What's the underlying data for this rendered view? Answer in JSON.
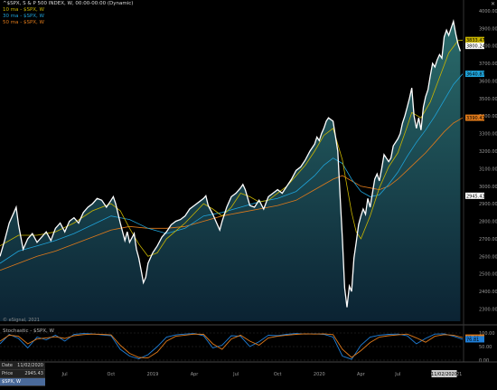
{
  "legend": {
    "title": "^$SPX, S & P 500 INDEX, W, 00:00-00:00 (Dynamic)",
    "ma10": "10 ma - $SPX, W",
    "ma30": "30 ma - $SPX, W",
    "ma50": "50 ma - $SPX, W"
  },
  "colors": {
    "price": "#ffffff",
    "ma10": "#c8b400",
    "ma30": "#1fa3d9",
    "ma50": "#e07a1a",
    "fill_top": "#2a6b6b",
    "fill_bottom": "#0b2333",
    "stoch_k": "#e07a1a",
    "stoch_d": "#1f7fd9"
  },
  "copyright": "© eSignal, 2021",
  "stoch_title": "Stochastic - $SPX, W",
  "info": {
    "date_label": "Date",
    "date_value": "11/02/2020",
    "price_label": "Price",
    "price_value": "2945.43",
    "symbol": "$SPX, W"
  },
  "close_glyph": "✕",
  "chart_data": {
    "type": "line",
    "ylim": [
      2230,
      4010
    ],
    "yticks": [
      2300,
      2400,
      2500,
      2600,
      2700,
      2800,
      2900,
      3000,
      3100,
      3200,
      3300,
      3400,
      3500,
      3600,
      3700,
      3800,
      3900,
      4000
    ],
    "xticks": [
      {
        "label": "Jul",
        "x": 0.14
      },
      {
        "label": "Oct",
        "x": 0.24
      },
      {
        "label": "2019",
        "x": 0.33
      },
      {
        "label": "Apr",
        "x": 0.42
      },
      {
        "label": "Jul",
        "x": 0.51
      },
      {
        "label": "Oct",
        "x": 0.6
      },
      {
        "label": "2020",
        "x": 0.69
      },
      {
        "label": "Apr",
        "x": 0.78
      },
      {
        "label": "Jul",
        "x": 0.86
      },
      {
        "label": "Oct",
        "x": 0.94
      },
      {
        "label": "2021",
        "x": 1.01
      }
    ],
    "xtick_highlight": {
      "label": "11/02/2020",
      "x": 0.96
    },
    "price_tags": [
      {
        "value": 3833.47,
        "label": "3833.47",
        "bg": "#c8b400",
        "fg": "#000"
      },
      {
        "value": 3800.24,
        "label": "3800.24",
        "bg": "#ffffff",
        "fg": "#000"
      },
      {
        "value": 3640.87,
        "label": "3640.87",
        "bg": "#1fa3d9",
        "fg": "#000"
      },
      {
        "value": 3390.41,
        "label": "3390.41",
        "bg": "#e07a1a",
        "fg": "#000"
      },
      {
        "value": 2945.43,
        "label": "2945.43",
        "bg": "#ffffff",
        "fg": "#000"
      }
    ],
    "price": [
      [
        0.0,
        2600
      ],
      [
        0.01,
        2690
      ],
      [
        0.02,
        2790
      ],
      [
        0.03,
        2850
      ],
      [
        0.035,
        2880
      ],
      [
        0.04,
        2780
      ],
      [
        0.05,
        2640
      ],
      [
        0.06,
        2700
      ],
      [
        0.07,
        2730
      ],
      [
        0.08,
        2680
      ],
      [
        0.09,
        2710
      ],
      [
        0.1,
        2740
      ],
      [
        0.11,
        2690
      ],
      [
        0.12,
        2760
      ],
      [
        0.13,
        2790
      ],
      [
        0.14,
        2740
      ],
      [
        0.15,
        2800
      ],
      [
        0.16,
        2820
      ],
      [
        0.17,
        2790
      ],
      [
        0.18,
        2850
      ],
      [
        0.19,
        2880
      ],
      [
        0.2,
        2900
      ],
      [
        0.21,
        2930
      ],
      [
        0.22,
        2920
      ],
      [
        0.23,
        2880
      ],
      [
        0.24,
        2920
      ],
      [
        0.245,
        2940
      ],
      [
        0.25,
        2900
      ],
      [
        0.26,
        2790
      ],
      [
        0.27,
        2690
      ],
      [
        0.275,
        2740
      ],
      [
        0.28,
        2680
      ],
      [
        0.29,
        2730
      ],
      [
        0.295,
        2640
      ],
      [
        0.3,
        2590
      ],
      [
        0.305,
        2520
      ],
      [
        0.31,
        2450
      ],
      [
        0.315,
        2480
      ],
      [
        0.32,
        2560
      ],
      [
        0.33,
        2620
      ],
      [
        0.34,
        2660
      ],
      [
        0.35,
        2710
      ],
      [
        0.36,
        2740
      ],
      [
        0.37,
        2780
      ],
      [
        0.38,
        2800
      ],
      [
        0.39,
        2810
      ],
      [
        0.4,
        2830
      ],
      [
        0.41,
        2870
      ],
      [
        0.42,
        2890
      ],
      [
        0.43,
        2910
      ],
      [
        0.44,
        2930
      ],
      [
        0.445,
        2945
      ],
      [
        0.45,
        2890
      ],
      [
        0.46,
        2840
      ],
      [
        0.47,
        2780
      ],
      [
        0.475,
        2750
      ],
      [
        0.48,
        2800
      ],
      [
        0.49,
        2880
      ],
      [
        0.5,
        2940
      ],
      [
        0.51,
        2960
      ],
      [
        0.52,
        2990
      ],
      [
        0.525,
        3010
      ],
      [
        0.53,
        2980
      ],
      [
        0.54,
        2890
      ],
      [
        0.55,
        2880
      ],
      [
        0.56,
        2920
      ],
      [
        0.57,
        2870
      ],
      [
        0.58,
        2940
      ],
      [
        0.59,
        2960
      ],
      [
        0.6,
        2980
      ],
      [
        0.61,
        2960
      ],
      [
        0.62,
        3000
      ],
      [
        0.63,
        3040
      ],
      [
        0.64,
        3090
      ],
      [
        0.65,
        3110
      ],
      [
        0.66,
        3150
      ],
      [
        0.67,
        3200
      ],
      [
        0.68,
        3240
      ],
      [
        0.685,
        3280
      ],
      [
        0.69,
        3260
      ],
      [
        0.695,
        3300
      ],
      [
        0.7,
        3330
      ],
      [
        0.705,
        3370
      ],
      [
        0.71,
        3390
      ],
      [
        0.72,
        3370
      ],
      [
        0.73,
        3200
      ],
      [
        0.735,
        2950
      ],
      [
        0.74,
        2700
      ],
      [
        0.745,
        2420
      ],
      [
        0.75,
        2310
      ],
      [
        0.755,
        2430
      ],
      [
        0.76,
        2400
      ],
      [
        0.765,
        2590
      ],
      [
        0.77,
        2680
      ],
      [
        0.775,
        2780
      ],
      [
        0.78,
        2830
      ],
      [
        0.785,
        2870
      ],
      [
        0.79,
        2840
      ],
      [
        0.795,
        2930
      ],
      [
        0.8,
        2880
      ],
      [
        0.81,
        3040
      ],
      [
        0.815,
        3070
      ],
      [
        0.82,
        3030
      ],
      [
        0.825,
        3100
      ],
      [
        0.83,
        3180
      ],
      [
        0.84,
        3140
      ],
      [
        0.845,
        3160
      ],
      [
        0.85,
        3230
      ],
      [
        0.86,
        3270
      ],
      [
        0.865,
        3300
      ],
      [
        0.87,
        3360
      ],
      [
        0.875,
        3400
      ],
      [
        0.88,
        3450
      ],
      [
        0.885,
        3500
      ],
      [
        0.89,
        3560
      ],
      [
        0.895,
        3400
      ],
      [
        0.9,
        3330
      ],
      [
        0.905,
        3390
      ],
      [
        0.91,
        3320
      ],
      [
        0.915,
        3450
      ],
      [
        0.92,
        3510
      ],
      [
        0.925,
        3550
      ],
      [
        0.93,
        3630
      ],
      [
        0.935,
        3700
      ],
      [
        0.94,
        3680
      ],
      [
        0.945,
        3720
      ],
      [
        0.95,
        3750
      ],
      [
        0.955,
        3730
      ],
      [
        0.96,
        3850
      ],
      [
        0.965,
        3890
      ],
      [
        0.97,
        3860
      ],
      [
        0.975,
        3900
      ],
      [
        0.98,
        3940
      ],
      [
        0.985,
        3870
      ],
      [
        0.99,
        3810
      ],
      [
        0.995,
        3770
      ]
    ],
    "ma10": [
      [
        0.0,
        2660
      ],
      [
        0.04,
        2720
      ],
      [
        0.08,
        2720
      ],
      [
        0.12,
        2740
      ],
      [
        0.16,
        2790
      ],
      [
        0.2,
        2860
      ],
      [
        0.24,
        2900
      ],
      [
        0.26,
        2860
      ],
      [
        0.28,
        2760
      ],
      [
        0.3,
        2670
      ],
      [
        0.32,
        2600
      ],
      [
        0.34,
        2620
      ],
      [
        0.36,
        2700
      ],
      [
        0.4,
        2790
      ],
      [
        0.44,
        2900
      ],
      [
        0.46,
        2870
      ],
      [
        0.48,
        2830
      ],
      [
        0.5,
        2880
      ],
      [
        0.52,
        2960
      ],
      [
        0.54,
        2940
      ],
      [
        0.56,
        2910
      ],
      [
        0.58,
        2920
      ],
      [
        0.6,
        2960
      ],
      [
        0.62,
        3000
      ],
      [
        0.64,
        3060
      ],
      [
        0.66,
        3120
      ],
      [
        0.68,
        3200
      ],
      [
        0.7,
        3290
      ],
      [
        0.72,
        3330
      ],
      [
        0.74,
        3150
      ],
      [
        0.76,
        2850
      ],
      [
        0.77,
        2740
      ],
      [
        0.78,
        2700
      ],
      [
        0.8,
        2830
      ],
      [
        0.82,
        2990
      ],
      [
        0.84,
        3110
      ],
      [
        0.86,
        3190
      ],
      [
        0.88,
        3340
      ],
      [
        0.89,
        3420
      ],
      [
        0.91,
        3390
      ],
      [
        0.93,
        3480
      ],
      [
        0.95,
        3620
      ],
      [
        0.97,
        3760
      ],
      [
        0.99,
        3830
      ],
      [
        1.0,
        3833
      ]
    ],
    "ma30": [
      [
        0.0,
        2560
      ],
      [
        0.04,
        2630
      ],
      [
        0.08,
        2660
      ],
      [
        0.12,
        2690
      ],
      [
        0.16,
        2730
      ],
      [
        0.2,
        2780
      ],
      [
        0.24,
        2830
      ],
      [
        0.28,
        2810
      ],
      [
        0.32,
        2760
      ],
      [
        0.36,
        2730
      ],
      [
        0.4,
        2760
      ],
      [
        0.44,
        2830
      ],
      [
        0.48,
        2850
      ],
      [
        0.52,
        2880
      ],
      [
        0.56,
        2910
      ],
      [
        0.6,
        2930
      ],
      [
        0.64,
        2970
      ],
      [
        0.68,
        3060
      ],
      [
        0.7,
        3120
      ],
      [
        0.72,
        3160
      ],
      [
        0.74,
        3130
      ],
      [
        0.76,
        3040
      ],
      [
        0.78,
        2970
      ],
      [
        0.8,
        2940
      ],
      [
        0.82,
        2950
      ],
      [
        0.84,
        3010
      ],
      [
        0.86,
        3080
      ],
      [
        0.88,
        3170
      ],
      [
        0.9,
        3250
      ],
      [
        0.92,
        3320
      ],
      [
        0.94,
        3400
      ],
      [
        0.96,
        3490
      ],
      [
        0.98,
        3580
      ],
      [
        1.0,
        3640
      ]
    ],
    "ma50": [
      [
        0.0,
        2520
      ],
      [
        0.04,
        2560
      ],
      [
        0.08,
        2600
      ],
      [
        0.12,
        2630
      ],
      [
        0.16,
        2670
      ],
      [
        0.2,
        2710
      ],
      [
        0.24,
        2750
      ],
      [
        0.28,
        2770
      ],
      [
        0.32,
        2760
      ],
      [
        0.36,
        2760
      ],
      [
        0.4,
        2770
      ],
      [
        0.44,
        2800
      ],
      [
        0.48,
        2830
      ],
      [
        0.52,
        2850
      ],
      [
        0.56,
        2870
      ],
      [
        0.6,
        2890
      ],
      [
        0.64,
        2920
      ],
      [
        0.68,
        2980
      ],
      [
        0.72,
        3040
      ],
      [
        0.74,
        3060
      ],
      [
        0.76,
        3030
      ],
      [
        0.78,
        3000
      ],
      [
        0.8,
        2990
      ],
      [
        0.82,
        2980
      ],
      [
        0.84,
        3000
      ],
      [
        0.86,
        3040
      ],
      [
        0.88,
        3090
      ],
      [
        0.9,
        3140
      ],
      [
        0.92,
        3190
      ],
      [
        0.94,
        3250
      ],
      [
        0.96,
        3310
      ],
      [
        0.98,
        3360
      ],
      [
        1.0,
        3390
      ]
    ],
    "stoch": {
      "ylim": [
        0,
        100
      ],
      "yticks": [
        0,
        50,
        100
      ],
      "tags": [
        {
          "value": 82.92,
          "label": "82.92",
          "bg": "#e07a1a"
        },
        {
          "value": 76.81,
          "label": "76.81",
          "bg": "#1f7fd9"
        }
      ],
      "k": [
        [
          0.0,
          70
        ],
        [
          0.02,
          92
        ],
        [
          0.04,
          88
        ],
        [
          0.06,
          60
        ],
        [
          0.08,
          78
        ],
        [
          0.1,
          82
        ],
        [
          0.12,
          86
        ],
        [
          0.14,
          80
        ],
        [
          0.16,
          90
        ],
        [
          0.18,
          94
        ],
        [
          0.2,
          96
        ],
        [
          0.22,
          95
        ],
        [
          0.24,
          93
        ],
        [
          0.26,
          55
        ],
        [
          0.28,
          25
        ],
        [
          0.3,
          10
        ],
        [
          0.32,
          8
        ],
        [
          0.34,
          30
        ],
        [
          0.36,
          70
        ],
        [
          0.38,
          88
        ],
        [
          0.4,
          92
        ],
        [
          0.42,
          96
        ],
        [
          0.44,
          95
        ],
        [
          0.46,
          60
        ],
        [
          0.48,
          40
        ],
        [
          0.5,
          78
        ],
        [
          0.52,
          92
        ],
        [
          0.54,
          70
        ],
        [
          0.56,
          55
        ],
        [
          0.58,
          82
        ],
        [
          0.6,
          88
        ],
        [
          0.62,
          92
        ],
        [
          0.64,
          95
        ],
        [
          0.66,
          97
        ],
        [
          0.68,
          96
        ],
        [
          0.7,
          97
        ],
        [
          0.72,
          94
        ],
        [
          0.74,
          40
        ],
        [
          0.76,
          10
        ],
        [
          0.78,
          35
        ],
        [
          0.8,
          65
        ],
        [
          0.82,
          85
        ],
        [
          0.84,
          90
        ],
        [
          0.86,
          93
        ],
        [
          0.88,
          96
        ],
        [
          0.9,
          82
        ],
        [
          0.92,
          66
        ],
        [
          0.94,
          88
        ],
        [
          0.96,
          94
        ],
        [
          0.98,
          92
        ],
        [
          1.0,
          83
        ]
      ],
      "d": [
        [
          0.0,
          60
        ],
        [
          0.02,
          95
        ],
        [
          0.04,
          80
        ],
        [
          0.06,
          45
        ],
        [
          0.08,
          85
        ],
        [
          0.1,
          75
        ],
        [
          0.12,
          92
        ],
        [
          0.14,
          70
        ],
        [
          0.16,
          95
        ],
        [
          0.18,
          98
        ],
        [
          0.2,
          97
        ],
        [
          0.22,
          93
        ],
        [
          0.24,
          90
        ],
        [
          0.26,
          40
        ],
        [
          0.28,
          15
        ],
        [
          0.3,
          5
        ],
        [
          0.32,
          20
        ],
        [
          0.34,
          50
        ],
        [
          0.36,
          85
        ],
        [
          0.38,
          93
        ],
        [
          0.4,
          96
        ],
        [
          0.42,
          98
        ],
        [
          0.44,
          90
        ],
        [
          0.46,
          45
        ],
        [
          0.48,
          55
        ],
        [
          0.5,
          90
        ],
        [
          0.52,
          88
        ],
        [
          0.54,
          50
        ],
        [
          0.56,
          68
        ],
        [
          0.58,
          92
        ],
        [
          0.6,
          90
        ],
        [
          0.62,
          95
        ],
        [
          0.64,
          98
        ],
        [
          0.66,
          96
        ],
        [
          0.68,
          97
        ],
        [
          0.7,
          95
        ],
        [
          0.72,
          85
        ],
        [
          0.74,
          15
        ],
        [
          0.76,
          3
        ],
        [
          0.78,
          55
        ],
        [
          0.8,
          85
        ],
        [
          0.82,
          92
        ],
        [
          0.84,
          95
        ],
        [
          0.86,
          96
        ],
        [
          0.88,
          90
        ],
        [
          0.9,
          60
        ],
        [
          0.92,
          80
        ],
        [
          0.94,
          96
        ],
        [
          0.96,
          97
        ],
        [
          0.98,
          88
        ],
        [
          1.0,
          77
        ]
      ]
    }
  }
}
